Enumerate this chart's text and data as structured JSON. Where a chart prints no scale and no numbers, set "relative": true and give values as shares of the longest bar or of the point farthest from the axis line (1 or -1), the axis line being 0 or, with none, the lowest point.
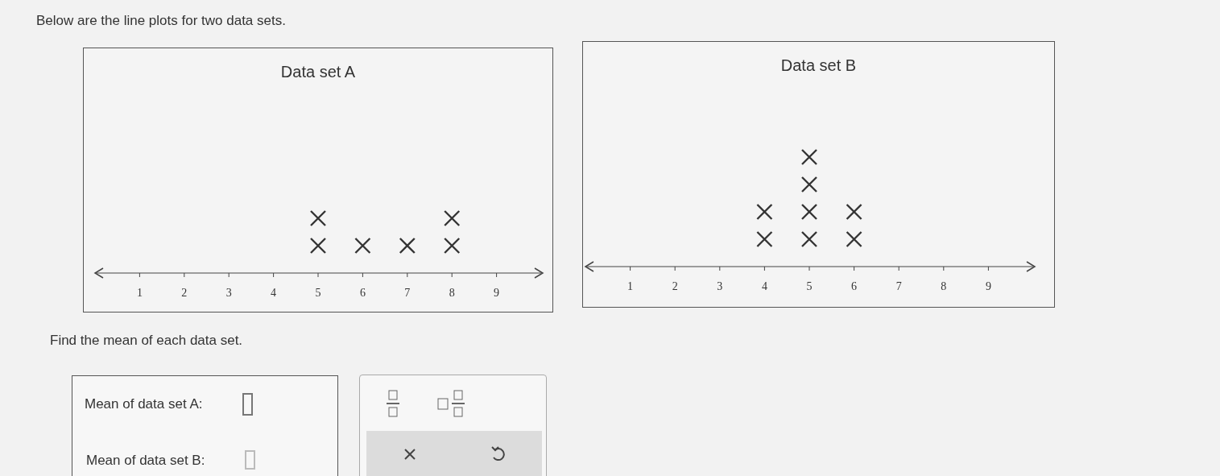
{
  "chart_data": [
    {
      "type": "scatter",
      "title": "Data set A",
      "x": [
        5,
        5,
        6,
        7,
        8,
        8
      ],
      "values": [
        0.5,
        1,
        0.5,
        0.5,
        0.5,
        1
      ],
      "relative": true,
      "xlim": [
        0,
        10
      ],
      "xticks": [
        1,
        2,
        3,
        4,
        5,
        6,
        7,
        8,
        9
      ],
      "marker": "cross",
      "color": "#333333"
    },
    {
      "type": "scatter",
      "title": "Data set B",
      "x": [
        4,
        4,
        5,
        5,
        5,
        5,
        6,
        6
      ],
      "values": [
        0.25,
        0.5,
        0.25,
        0.5,
        0.75,
        1,
        0.25,
        0.5
      ],
      "relative": true,
      "xlim": [
        0,
        10
      ],
      "xticks": [
        1,
        2,
        3,
        4,
        5,
        6,
        7,
        8,
        9
      ],
      "marker": "cross",
      "color": "#333333"
    },
    {
      "type": "other",
      "annotations": [
        "Below are the line plots for two data sets.",
        "Find the mean of each data set.",
        "Mean of data set A:",
        "Mean of data set B:"
      ]
    }
  ]
}
